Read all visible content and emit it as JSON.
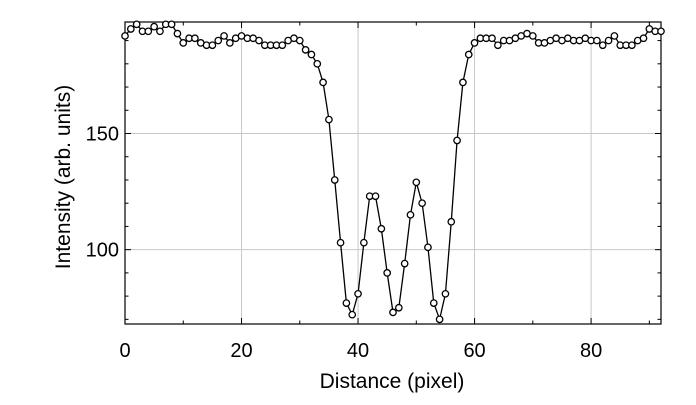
{
  "chart_data": {
    "type": "line",
    "xlabel": "Distance (pixel)",
    "ylabel": "Intensity (arb. units)",
    "xlim": [
      0,
      92
    ],
    "ylim": [
      68,
      198
    ],
    "x_ticks": [
      0,
      20,
      40,
      60,
      80
    ],
    "y_ticks": [
      100,
      150
    ],
    "grid": true,
    "marker": "open-circle",
    "line_color": "#000000",
    "series": [
      {
        "x": [
          0,
          1,
          2,
          3,
          4,
          5,
          6,
          7,
          8,
          9,
          10,
          11,
          12,
          13,
          14,
          15,
          16,
          17,
          18,
          19,
          20,
          21,
          22,
          23,
          24,
          25,
          26,
          27,
          28,
          29,
          30,
          31,
          32,
          33,
          34,
          35,
          36,
          37,
          38,
          39,
          40,
          41,
          42,
          43,
          44,
          45,
          46,
          47,
          48,
          49,
          50,
          51,
          52,
          53,
          54,
          55,
          56,
          57,
          58,
          59,
          60,
          61,
          62,
          63,
          64,
          65,
          66,
          67,
          68,
          69,
          70,
          71,
          72,
          73,
          74,
          75,
          76,
          77,
          78,
          79,
          80,
          81,
          82,
          83,
          84,
          85,
          86,
          87,
          88,
          89,
          90,
          91,
          92
        ],
        "y": [
          192,
          195,
          197,
          194,
          194,
          196,
          194,
          197,
          197,
          193,
          189,
          191,
          191,
          189,
          188,
          188,
          190,
          192,
          189,
          191,
          192,
          191,
          191,
          190,
          188,
          188,
          188,
          188,
          190,
          191,
          190,
          186,
          184,
          180,
          172,
          156,
          130,
          103,
          77,
          72,
          81,
          103,
          123,
          123,
          109,
          90,
          73,
          75,
          94,
          115,
          129,
          120,
          101,
          77,
          70,
          81,
          112,
          147,
          172,
          184,
          189,
          191,
          191,
          191,
          188,
          190,
          190,
          191,
          192,
          193,
          192,
          189,
          189,
          190,
          191,
          190,
          191,
          190,
          190,
          191,
          190,
          190,
          188,
          190,
          192,
          188,
          188,
          188,
          190,
          191,
          195,
          194,
          194
        ]
      }
    ]
  }
}
